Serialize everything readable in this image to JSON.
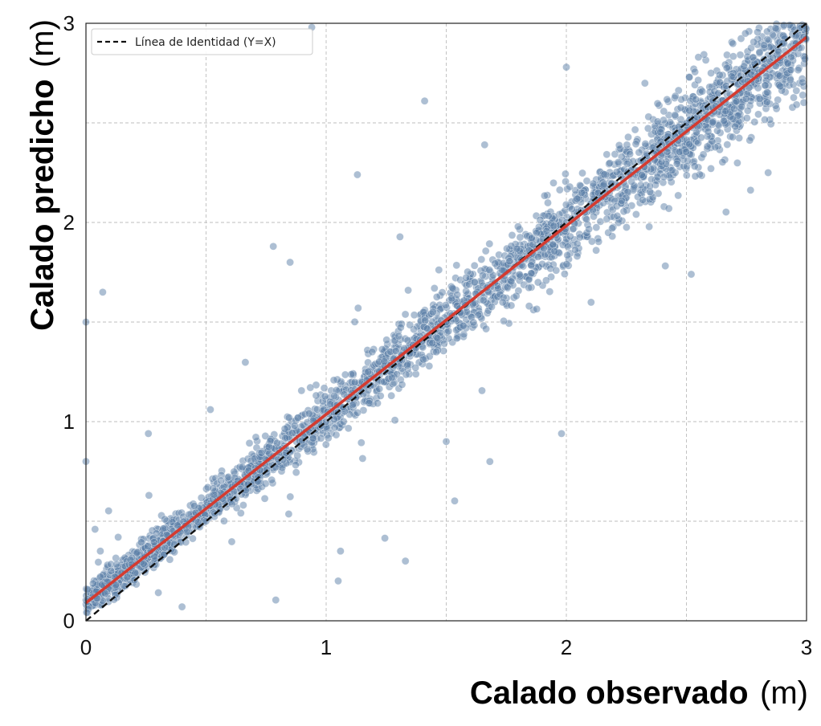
{
  "chart_data": {
    "type": "scatter",
    "xlabel": {
      "bold": "Calado observado",
      "unit": "(m)"
    },
    "ylabel": {
      "bold": "Calado predicho",
      "unit": "(m)"
    },
    "xlim": [
      0,
      3
    ],
    "ylim": [
      0,
      3
    ],
    "xticks": [
      0,
      1,
      2,
      3
    ],
    "yticks": [
      0,
      1,
      2,
      3
    ],
    "minor_grid_step": 0.5,
    "grid": true,
    "grid_style": "dashed",
    "legend": {
      "placement": "top-left",
      "entries": [
        {
          "label": "Línea de Identidad (Y=X)",
          "style": "dashed",
          "color": "#111111"
        }
      ]
    },
    "series": [
      {
        "type": "scatter",
        "color": "#5b7fa8",
        "opacity": 0.5,
        "approx_point_count": 3000,
        "sample_points": [
          [
            0.0,
            1.5
          ],
          [
            0.0,
            0.8
          ],
          [
            0.07,
            1.65
          ],
          [
            0.06,
            0.35
          ],
          [
            0.12,
            0.22
          ],
          [
            0.26,
            0.94
          ],
          [
            0.4,
            0.07
          ],
          [
            0.78,
            1.88
          ],
          [
            0.85,
            1.8
          ],
          [
            0.94,
            2.98
          ],
          [
            1.05,
            0.2
          ],
          [
            1.06,
            0.35
          ],
          [
            1.13,
            2.24
          ],
          [
            1.33,
            0.3
          ],
          [
            1.41,
            2.61
          ],
          [
            1.5,
            0.9
          ],
          [
            1.66,
            2.39
          ],
          [
            1.98,
            0.94
          ],
          [
            2.0,
            2.78
          ],
          [
            2.52,
            1.74
          ],
          [
            2.84,
            2.25
          ],
          [
            2.55,
            2.83
          ],
          [
            0.5,
            0.5
          ],
          [
            1.0,
            1.0
          ],
          [
            1.5,
            1.5
          ],
          [
            2.0,
            2.0
          ],
          [
            2.5,
            2.5
          ],
          [
            2.9,
            2.9
          ]
        ]
      },
      {
        "type": "line",
        "color": "#111111",
        "style": "dashed",
        "x": [
          0,
          3
        ],
        "y": [
          0,
          3
        ]
      },
      {
        "type": "line",
        "color": "#d43b30",
        "style": "solid",
        "x": [
          0,
          3
        ],
        "y": [
          0.09,
          2.93
        ]
      }
    ]
  }
}
